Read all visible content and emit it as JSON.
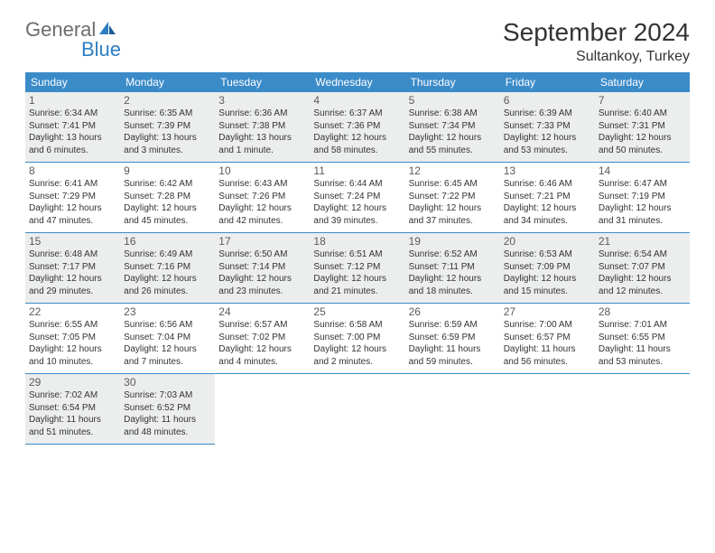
{
  "brand": {
    "part1": "General",
    "part2": "Blue"
  },
  "title": "September 2024",
  "location": "Sultankoy, Turkey",
  "colors": {
    "header_bg": "#3b8bc9",
    "row_alt": "#eceded",
    "brand_blue": "#2c7ec2",
    "brand_gray": "#6c6c6c"
  },
  "weekdays": [
    "Sunday",
    "Monday",
    "Tuesday",
    "Wednesday",
    "Thursday",
    "Friday",
    "Saturday"
  ],
  "weeks": [
    [
      {
        "n": "1",
        "sr": "Sunrise: 6:34 AM",
        "ss": "Sunset: 7:41 PM",
        "dl": "Daylight: 13 hours and 6 minutes."
      },
      {
        "n": "2",
        "sr": "Sunrise: 6:35 AM",
        "ss": "Sunset: 7:39 PM",
        "dl": "Daylight: 13 hours and 3 minutes."
      },
      {
        "n": "3",
        "sr": "Sunrise: 6:36 AM",
        "ss": "Sunset: 7:38 PM",
        "dl": "Daylight: 13 hours and 1 minute."
      },
      {
        "n": "4",
        "sr": "Sunrise: 6:37 AM",
        "ss": "Sunset: 7:36 PM",
        "dl": "Daylight: 12 hours and 58 minutes."
      },
      {
        "n": "5",
        "sr": "Sunrise: 6:38 AM",
        "ss": "Sunset: 7:34 PM",
        "dl": "Daylight: 12 hours and 55 minutes."
      },
      {
        "n": "6",
        "sr": "Sunrise: 6:39 AM",
        "ss": "Sunset: 7:33 PM",
        "dl": "Daylight: 12 hours and 53 minutes."
      },
      {
        "n": "7",
        "sr": "Sunrise: 6:40 AM",
        "ss": "Sunset: 7:31 PM",
        "dl": "Daylight: 12 hours and 50 minutes."
      }
    ],
    [
      {
        "n": "8",
        "sr": "Sunrise: 6:41 AM",
        "ss": "Sunset: 7:29 PM",
        "dl": "Daylight: 12 hours and 47 minutes."
      },
      {
        "n": "9",
        "sr": "Sunrise: 6:42 AM",
        "ss": "Sunset: 7:28 PM",
        "dl": "Daylight: 12 hours and 45 minutes."
      },
      {
        "n": "10",
        "sr": "Sunrise: 6:43 AM",
        "ss": "Sunset: 7:26 PM",
        "dl": "Daylight: 12 hours and 42 minutes."
      },
      {
        "n": "11",
        "sr": "Sunrise: 6:44 AM",
        "ss": "Sunset: 7:24 PM",
        "dl": "Daylight: 12 hours and 39 minutes."
      },
      {
        "n": "12",
        "sr": "Sunrise: 6:45 AM",
        "ss": "Sunset: 7:22 PM",
        "dl": "Daylight: 12 hours and 37 minutes."
      },
      {
        "n": "13",
        "sr": "Sunrise: 6:46 AM",
        "ss": "Sunset: 7:21 PM",
        "dl": "Daylight: 12 hours and 34 minutes."
      },
      {
        "n": "14",
        "sr": "Sunrise: 6:47 AM",
        "ss": "Sunset: 7:19 PM",
        "dl": "Daylight: 12 hours and 31 minutes."
      }
    ],
    [
      {
        "n": "15",
        "sr": "Sunrise: 6:48 AM",
        "ss": "Sunset: 7:17 PM",
        "dl": "Daylight: 12 hours and 29 minutes."
      },
      {
        "n": "16",
        "sr": "Sunrise: 6:49 AM",
        "ss": "Sunset: 7:16 PM",
        "dl": "Daylight: 12 hours and 26 minutes."
      },
      {
        "n": "17",
        "sr": "Sunrise: 6:50 AM",
        "ss": "Sunset: 7:14 PM",
        "dl": "Daylight: 12 hours and 23 minutes."
      },
      {
        "n": "18",
        "sr": "Sunrise: 6:51 AM",
        "ss": "Sunset: 7:12 PM",
        "dl": "Daylight: 12 hours and 21 minutes."
      },
      {
        "n": "19",
        "sr": "Sunrise: 6:52 AM",
        "ss": "Sunset: 7:11 PM",
        "dl": "Daylight: 12 hours and 18 minutes."
      },
      {
        "n": "20",
        "sr": "Sunrise: 6:53 AM",
        "ss": "Sunset: 7:09 PM",
        "dl": "Daylight: 12 hours and 15 minutes."
      },
      {
        "n": "21",
        "sr": "Sunrise: 6:54 AM",
        "ss": "Sunset: 7:07 PM",
        "dl": "Daylight: 12 hours and 12 minutes."
      }
    ],
    [
      {
        "n": "22",
        "sr": "Sunrise: 6:55 AM",
        "ss": "Sunset: 7:05 PM",
        "dl": "Daylight: 12 hours and 10 minutes."
      },
      {
        "n": "23",
        "sr": "Sunrise: 6:56 AM",
        "ss": "Sunset: 7:04 PM",
        "dl": "Daylight: 12 hours and 7 minutes."
      },
      {
        "n": "24",
        "sr": "Sunrise: 6:57 AM",
        "ss": "Sunset: 7:02 PM",
        "dl": "Daylight: 12 hours and 4 minutes."
      },
      {
        "n": "25",
        "sr": "Sunrise: 6:58 AM",
        "ss": "Sunset: 7:00 PM",
        "dl": "Daylight: 12 hours and 2 minutes."
      },
      {
        "n": "26",
        "sr": "Sunrise: 6:59 AM",
        "ss": "Sunset: 6:59 PM",
        "dl": "Daylight: 11 hours and 59 minutes."
      },
      {
        "n": "27",
        "sr": "Sunrise: 7:00 AM",
        "ss": "Sunset: 6:57 PM",
        "dl": "Daylight: 11 hours and 56 minutes."
      },
      {
        "n": "28",
        "sr": "Sunrise: 7:01 AM",
        "ss": "Sunset: 6:55 PM",
        "dl": "Daylight: 11 hours and 53 minutes."
      }
    ],
    [
      {
        "n": "29",
        "sr": "Sunrise: 7:02 AM",
        "ss": "Sunset: 6:54 PM",
        "dl": "Daylight: 11 hours and 51 minutes."
      },
      {
        "n": "30",
        "sr": "Sunrise: 7:03 AM",
        "ss": "Sunset: 6:52 PM",
        "dl": "Daylight: 11 hours and 48 minutes."
      },
      null,
      null,
      null,
      null,
      null
    ]
  ]
}
